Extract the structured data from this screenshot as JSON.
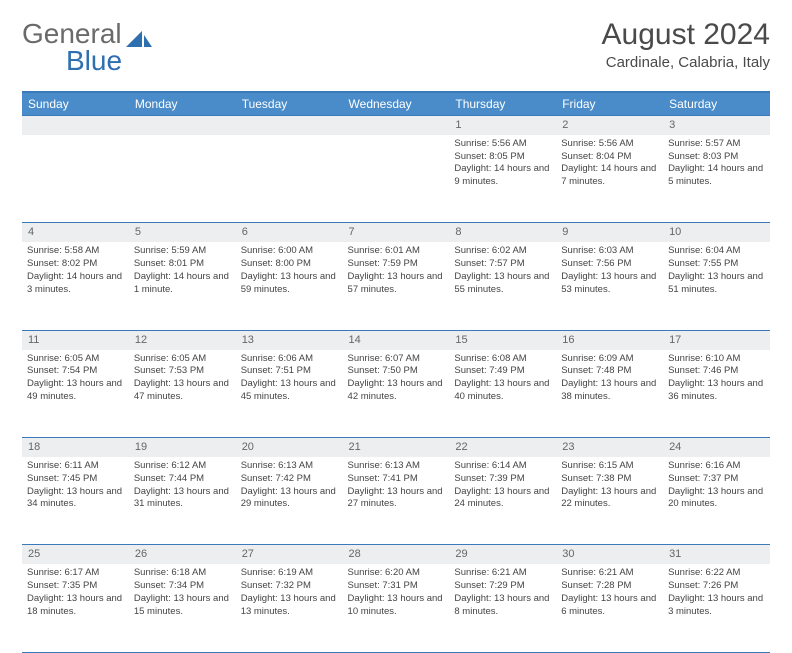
{
  "brand": {
    "part1": "General",
    "part2": "Blue"
  },
  "title": "August 2024",
  "location": "Cardinale, Calabria, Italy",
  "colors": {
    "header_bg": "#4a8cc9",
    "header_text": "#ffffff",
    "rule": "#3a7ab8",
    "daynum_bg": "#eceeef",
    "body_text": "#444444",
    "brand_gray": "#6a6a6a",
    "brand_blue": "#2e6fb0"
  },
  "day_headers": [
    "Sunday",
    "Monday",
    "Tuesday",
    "Wednesday",
    "Thursday",
    "Friday",
    "Saturday"
  ],
  "weeks": [
    [
      null,
      null,
      null,
      null,
      {
        "n": "1",
        "sr": "5:56 AM",
        "ss": "8:05 PM",
        "dl": "14 hours and 9 minutes."
      },
      {
        "n": "2",
        "sr": "5:56 AM",
        "ss": "8:04 PM",
        "dl": "14 hours and 7 minutes."
      },
      {
        "n": "3",
        "sr": "5:57 AM",
        "ss": "8:03 PM",
        "dl": "14 hours and 5 minutes."
      }
    ],
    [
      {
        "n": "4",
        "sr": "5:58 AM",
        "ss": "8:02 PM",
        "dl": "14 hours and 3 minutes."
      },
      {
        "n": "5",
        "sr": "5:59 AM",
        "ss": "8:01 PM",
        "dl": "14 hours and 1 minute."
      },
      {
        "n": "6",
        "sr": "6:00 AM",
        "ss": "8:00 PM",
        "dl": "13 hours and 59 minutes."
      },
      {
        "n": "7",
        "sr": "6:01 AM",
        "ss": "7:59 PM",
        "dl": "13 hours and 57 minutes."
      },
      {
        "n": "8",
        "sr": "6:02 AM",
        "ss": "7:57 PM",
        "dl": "13 hours and 55 minutes."
      },
      {
        "n": "9",
        "sr": "6:03 AM",
        "ss": "7:56 PM",
        "dl": "13 hours and 53 minutes."
      },
      {
        "n": "10",
        "sr": "6:04 AM",
        "ss": "7:55 PM",
        "dl": "13 hours and 51 minutes."
      }
    ],
    [
      {
        "n": "11",
        "sr": "6:05 AM",
        "ss": "7:54 PM",
        "dl": "13 hours and 49 minutes."
      },
      {
        "n": "12",
        "sr": "6:05 AM",
        "ss": "7:53 PM",
        "dl": "13 hours and 47 minutes."
      },
      {
        "n": "13",
        "sr": "6:06 AM",
        "ss": "7:51 PM",
        "dl": "13 hours and 45 minutes."
      },
      {
        "n": "14",
        "sr": "6:07 AM",
        "ss": "7:50 PM",
        "dl": "13 hours and 42 minutes."
      },
      {
        "n": "15",
        "sr": "6:08 AM",
        "ss": "7:49 PM",
        "dl": "13 hours and 40 minutes."
      },
      {
        "n": "16",
        "sr": "6:09 AM",
        "ss": "7:48 PM",
        "dl": "13 hours and 38 minutes."
      },
      {
        "n": "17",
        "sr": "6:10 AM",
        "ss": "7:46 PM",
        "dl": "13 hours and 36 minutes."
      }
    ],
    [
      {
        "n": "18",
        "sr": "6:11 AM",
        "ss": "7:45 PM",
        "dl": "13 hours and 34 minutes."
      },
      {
        "n": "19",
        "sr": "6:12 AM",
        "ss": "7:44 PM",
        "dl": "13 hours and 31 minutes."
      },
      {
        "n": "20",
        "sr": "6:13 AM",
        "ss": "7:42 PM",
        "dl": "13 hours and 29 minutes."
      },
      {
        "n": "21",
        "sr": "6:13 AM",
        "ss": "7:41 PM",
        "dl": "13 hours and 27 minutes."
      },
      {
        "n": "22",
        "sr": "6:14 AM",
        "ss": "7:39 PM",
        "dl": "13 hours and 24 minutes."
      },
      {
        "n": "23",
        "sr": "6:15 AM",
        "ss": "7:38 PM",
        "dl": "13 hours and 22 minutes."
      },
      {
        "n": "24",
        "sr": "6:16 AM",
        "ss": "7:37 PM",
        "dl": "13 hours and 20 minutes."
      }
    ],
    [
      {
        "n": "25",
        "sr": "6:17 AM",
        "ss": "7:35 PM",
        "dl": "13 hours and 18 minutes."
      },
      {
        "n": "26",
        "sr": "6:18 AM",
        "ss": "7:34 PM",
        "dl": "13 hours and 15 minutes."
      },
      {
        "n": "27",
        "sr": "6:19 AM",
        "ss": "7:32 PM",
        "dl": "13 hours and 13 minutes."
      },
      {
        "n": "28",
        "sr": "6:20 AM",
        "ss": "7:31 PM",
        "dl": "13 hours and 10 minutes."
      },
      {
        "n": "29",
        "sr": "6:21 AM",
        "ss": "7:29 PM",
        "dl": "13 hours and 8 minutes."
      },
      {
        "n": "30",
        "sr": "6:21 AM",
        "ss": "7:28 PM",
        "dl": "13 hours and 6 minutes."
      },
      {
        "n": "31",
        "sr": "6:22 AM",
        "ss": "7:26 PM",
        "dl": "13 hours and 3 minutes."
      }
    ]
  ],
  "labels": {
    "sunrise": "Sunrise:",
    "sunset": "Sunset:",
    "daylight": "Daylight:"
  }
}
